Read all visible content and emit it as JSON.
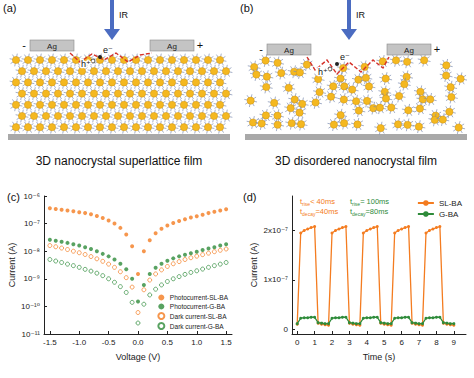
{
  "diagrams": [
    {
      "label": "(a)",
      "light": "IR",
      "electrode": "Ag",
      "negative": "-",
      "positive": "+",
      "electron": "e⁻",
      "hole": "h⁺",
      "caption": "3D nanocrystal superlattice film"
    },
    {
      "label": "(b)",
      "light": "IR",
      "electrode": "Ag",
      "negative": "-",
      "positive": "+",
      "electron": "e⁻",
      "hole": "h⁺",
      "caption": "3D disordered nanocrystal film"
    }
  ],
  "chart_data": [
    {
      "type": "scatter",
      "title": "(c)",
      "x_label": "Voltage (V)",
      "y_label": "Current (A)",
      "log": "y",
      "grid": false,
      "legend": "bottom-right",
      "xlim": [
        -1.6,
        1.6
      ],
      "xticks": [
        -1.5,
        {
          "value": -1,
          "label": "-1.0"
        },
        -0.5,
        {
          "value": 0,
          "label": "0.0"
        },
        0.5,
        {
          "value": 1,
          "label": "1.0"
        },
        1.5
      ],
      "ylim": [
        1e-11,
        1e-06
      ],
      "yticks": [
        {
          "value": 1e-11,
          "label": "10⁻¹¹"
        },
        {
          "value": 1e-10,
          "label": "10⁻¹⁰"
        },
        {
          "value": 1e-09,
          "label": "10⁻⁹"
        },
        {
          "value": 1e-08,
          "label": "10⁻⁸"
        },
        {
          "value": 1e-07,
          "label": "10⁻⁷"
        },
        {
          "value": 1e-06,
          "label": "10⁻⁶"
        }
      ],
      "x": [
        -1.5,
        -1.4,
        -1.3,
        -1.2,
        -1.1,
        -1.0,
        -0.9,
        -0.8,
        -0.7,
        -0.6,
        -0.5,
        -0.4,
        -0.3,
        -0.2,
        -0.1,
        0.0,
        0.1,
        0.2,
        0.3,
        0.4,
        0.5,
        0.6,
        0.7,
        0.8,
        0.9,
        1.0,
        1.1,
        1.2,
        1.3,
        1.4,
        1.5
      ],
      "series": [
        {
          "name": "Photocurrent-SL-BA",
          "color": "#f47c20",
          "marker": "circle",
          "values": [
            3.6e-07,
            3.4e-07,
            3.2e-07,
            3e-07,
            2.8e-07,
            2.6e-07,
            2.4e-07,
            2.2e-07,
            1.9e-07,
            1.6e-07,
            1.3e-07,
            1e-07,
            7e-08,
            4e-08,
            1.5e-08,
            1.5e-09,
            1e-08,
            2.5e-08,
            4.5e-08,
            6.5e-08,
            8.5e-08,
            1.05e-07,
            1.25e-07,
            1.45e-07,
            1.65e-07,
            1.85e-07,
            2.1e-07,
            2.4e-07,
            2.7e-07,
            3e-07,
            3.3e-07
          ]
        },
        {
          "name": "Photocurrent-G-BA",
          "color": "#2e8b3a",
          "marker": "circle",
          "values": [
            2.6e-08,
            2.4e-08,
            2.2e-08,
            2e-08,
            1.8e-08,
            1.6e-08,
            1.4e-08,
            1.2e-08,
            1e-08,
            8e-09,
            6.5e-09,
            5e-09,
            3.5e-09,
            2.2e-09,
            1e-09,
            1.5e-10,
            6e-10,
            1.5e-09,
            2.5e-09,
            3.5e-09,
            4.5e-09,
            5.5e-09,
            6.5e-09,
            7.5e-09,
            8.5e-09,
            9.5e-09,
            1.1e-08,
            1.25e-08,
            1.4e-08,
            1.6e-08,
            1.8e-08
          ]
        },
        {
          "name": "Dark current-SL-BA",
          "color": "#f47c20",
          "marker": "open_circle",
          "values": [
            1.6e-08,
            1.45e-08,
            1.3e-08,
            1.15e-08,
            1e-08,
            8.8e-09,
            7.6e-09,
            6.4e-09,
            5.3e-09,
            4.3e-09,
            3.4e-09,
            2.6e-09,
            1.8e-09,
            1.1e-09,
            5e-10,
            6e-11,
            4e-10,
            9e-10,
            1.5e-09,
            2.1e-09,
            2.8e-09,
            3.5e-09,
            4.2e-09,
            5e-09,
            5.8e-09,
            6.6e-09,
            7.5e-09,
            8.5e-09,
            9.6e-09,
            1.08e-08,
            1.2e-08
          ]
        },
        {
          "name": "Dark current-G-BA",
          "color": "#2e8b3a",
          "marker": "open_circle",
          "values": [
            5e-09,
            4.4e-09,
            3.9e-09,
            3.4e-09,
            3e-09,
            2.6e-09,
            2.2e-09,
            1.9e-09,
            1.6e-09,
            1.3e-09,
            1e-09,
            7.5e-10,
            5.2e-10,
            3.2e-10,
            1.4e-10,
            2.5e-11,
            1.2e-10,
            2.6e-10,
            4.2e-10,
            6e-10,
            8e-10,
            1e-09,
            1.2e-09,
            1.45e-09,
            1.7e-09,
            1.95e-09,
            2.25e-09,
            2.6e-09,
            3e-09,
            3.4e-09,
            3.9e-09
          ]
        }
      ]
    },
    {
      "type": "line",
      "title": "(d)",
      "x_label": "Time (s)",
      "y_label": "Current (A)",
      "grid": false,
      "legend": "top-right",
      "marker": "circle",
      "xlim": [
        -0.3,
        9.7
      ],
      "xticks": [
        0,
        1,
        2,
        3,
        4,
        5,
        6,
        7,
        8,
        9
      ],
      "ylim": [
        -1e-08,
        2.7e-07
      ],
      "yticks": [
        0,
        {
          "value": 1e-07,
          "label": "1x10⁻⁷"
        },
        {
          "value": 2e-07,
          "label": "2x10⁻⁷"
        }
      ],
      "annotations": [
        {
          "base": "t",
          "sub": "rise",
          "text": "< 40ms",
          "color": "#f47c20"
        },
        {
          "base": "t",
          "sub": "rise",
          "text": "= 100ms",
          "color": "#2e8b3a"
        },
        {
          "base": "t",
          "sub": "decay",
          "text": "=40ms",
          "color": "#f47c20"
        },
        {
          "base": "t",
          "sub": "decay",
          "text": "=80ms",
          "color": "#2e8b3a"
        }
      ],
      "x": [
        0,
        0.2,
        0.4,
        0.6,
        0.8,
        1.0,
        1.2,
        1.4,
        1.6,
        1.8,
        2.0,
        2.2,
        2.4,
        2.6,
        2.8,
        3.0,
        3.2,
        3.4,
        3.6,
        3.8,
        4.0,
        4.2,
        4.4,
        4.6,
        4.8,
        5.0,
        5.2,
        5.4,
        5.6,
        5.8,
        6.0,
        6.2,
        6.4,
        6.6,
        6.8,
        7.0,
        7.2,
        7.4,
        7.6,
        7.8,
        8.0,
        8.2,
        8.4,
        8.6,
        8.8,
        9.0
      ],
      "series": [
        {
          "name": "SL-BA",
          "color": "#f47c20",
          "values": [
            1e-08,
            1.95e-07,
            2e-07,
            2.03e-07,
            2.06e-07,
            2.08e-07,
            1.2e-08,
            1e-08,
            9e-09,
            8e-09,
            1.95e-07,
            2e-07,
            2.03e-07,
            2.06e-07,
            2.08e-07,
            1.2e-08,
            1e-08,
            9e-09,
            8e-09,
            1.95e-07,
            2e-07,
            2.03e-07,
            2.06e-07,
            2.08e-07,
            1.2e-08,
            1e-08,
            9e-09,
            8e-09,
            1.95e-07,
            2e-07,
            2.03e-07,
            2.06e-07,
            2.08e-07,
            1.2e-08,
            1e-08,
            9e-09,
            8e-09,
            1.95e-07,
            2e-07,
            2.03e-07,
            2.06e-07,
            2.08e-07,
            1.2e-08,
            1e-08,
            9e-09,
            8e-09
          ]
        },
        {
          "name": "G-BA",
          "color": "#2e8b3a",
          "values": [
            1.1e-08,
            2.2e-08,
            2.3e-08,
            2.3e-08,
            2.4e-08,
            2.4e-08,
            1.3e-08,
            1.2e-08,
            1.1e-08,
            1.1e-08,
            2.2e-08,
            2.3e-08,
            2.3e-08,
            2.4e-08,
            2.4e-08,
            1.3e-08,
            1.2e-08,
            1.1e-08,
            1.1e-08,
            2.2e-08,
            2.3e-08,
            2.3e-08,
            2.4e-08,
            2.4e-08,
            1.3e-08,
            1.2e-08,
            1.1e-08,
            1.1e-08,
            2.2e-08,
            2.3e-08,
            2.3e-08,
            2.4e-08,
            2.4e-08,
            1.3e-08,
            1.2e-08,
            1.1e-08,
            1.1e-08,
            2.2e-08,
            2.3e-08,
            2.3e-08,
            2.4e-08,
            2.4e-08,
            1.3e-08,
            1.2e-08,
            1.1e-08,
            1.1e-08
          ]
        }
      ]
    }
  ]
}
